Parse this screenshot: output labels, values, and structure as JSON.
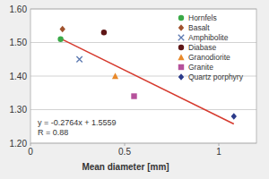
{
  "chart_data": {
    "type": "scatter",
    "x_label": "Mean diameter [mm]",
    "xlim": [
      0,
      1.2
    ],
    "xticks": [
      0,
      0.5,
      1
    ],
    "ylim": [
      1.2,
      1.6
    ],
    "yticks": [
      {
        "value": 1.2,
        "label": "1.20"
      },
      {
        "value": 1.3,
        "label": "1.30"
      },
      {
        "value": 1.4,
        "label": "1.40"
      },
      {
        "value": 1.5,
        "label": "1.50"
      },
      {
        "value": 1.6,
        "label": "1.60"
      }
    ],
    "grid": true,
    "legend": "upper right",
    "annotations": [
      "y = -0.2764x + 1.5559",
      "R = 0.88"
    ],
    "series": [
      {
        "name": "Hornfels",
        "color": "#3aaa48",
        "marker": "circle",
        "x": [
          0.16
        ],
        "values": [
          1.51
        ]
      },
      {
        "name": "Basalt",
        "color": "#a0522d",
        "marker": "diamond",
        "x": [
          0.17
        ],
        "values": [
          1.54
        ]
      },
      {
        "name": "Amphibolite",
        "color": "#5b78b0",
        "marker": "x",
        "x": [
          0.26
        ],
        "values": [
          1.45
        ]
      },
      {
        "name": "Diabase",
        "color": "#5e1616",
        "marker": "circle",
        "x": [
          0.39
        ],
        "values": [
          1.53
        ]
      },
      {
        "name": "Granodiorite",
        "color": "#e8892b",
        "marker": "triangle",
        "x": [
          0.45
        ],
        "values": [
          1.4
        ]
      },
      {
        "name": "Granite",
        "color": "#b5519b",
        "marker": "square",
        "x": [
          0.55
        ],
        "values": [
          1.34
        ]
      },
      {
        "name": "Quartz porphyry",
        "color": "#2b3a8a",
        "marker": "diamond",
        "x": [
          1.08
        ],
        "values": [
          1.28
        ]
      },
      {
        "type": "line",
        "color": "#d63a2e",
        "line_style": "solid",
        "x": [
          0.16,
          1.08
        ],
        "values": [
          1.5117,
          1.2574
        ]
      }
    ]
  }
}
